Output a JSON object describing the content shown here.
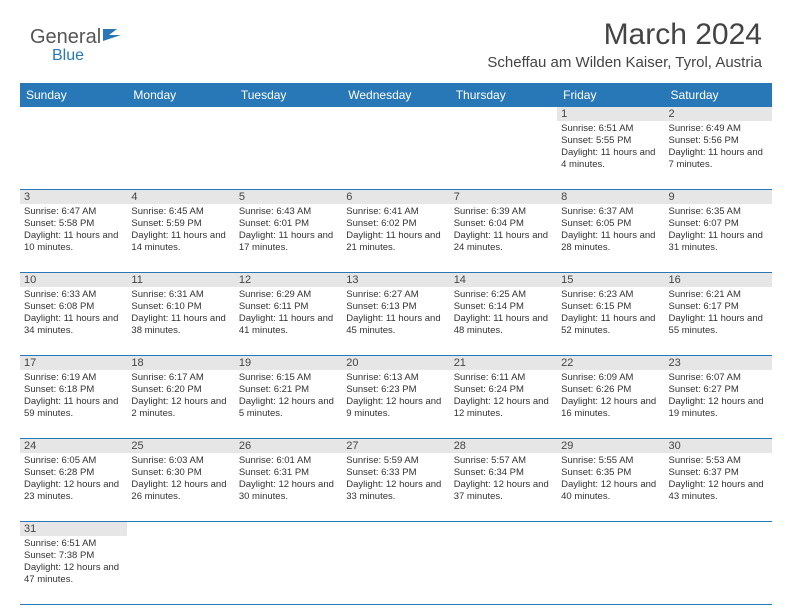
{
  "logo": {
    "text1": "General",
    "text2": "Blue"
  },
  "title": "March 2024",
  "location": "Scheffau am Wilden Kaiser, Tyrol, Austria",
  "colors": {
    "header_bg": "#2878b8",
    "daynum_bg": "#e6e6e6",
    "border": "#2878b8"
  },
  "weekdays": [
    "Sunday",
    "Monday",
    "Tuesday",
    "Wednesday",
    "Thursday",
    "Friday",
    "Saturday"
  ],
  "weeks": [
    [
      null,
      null,
      null,
      null,
      null,
      {
        "n": "1",
        "sunrise": "Sunrise: 6:51 AM",
        "sunset": "Sunset: 5:55 PM",
        "daylight": "Daylight: 11 hours and 4 minutes."
      },
      {
        "n": "2",
        "sunrise": "Sunrise: 6:49 AM",
        "sunset": "Sunset: 5:56 PM",
        "daylight": "Daylight: 11 hours and 7 minutes."
      }
    ],
    [
      {
        "n": "3",
        "sunrise": "Sunrise: 6:47 AM",
        "sunset": "Sunset: 5:58 PM",
        "daylight": "Daylight: 11 hours and 10 minutes."
      },
      {
        "n": "4",
        "sunrise": "Sunrise: 6:45 AM",
        "sunset": "Sunset: 5:59 PM",
        "daylight": "Daylight: 11 hours and 14 minutes."
      },
      {
        "n": "5",
        "sunrise": "Sunrise: 6:43 AM",
        "sunset": "Sunset: 6:01 PM",
        "daylight": "Daylight: 11 hours and 17 minutes."
      },
      {
        "n": "6",
        "sunrise": "Sunrise: 6:41 AM",
        "sunset": "Sunset: 6:02 PM",
        "daylight": "Daylight: 11 hours and 21 minutes."
      },
      {
        "n": "7",
        "sunrise": "Sunrise: 6:39 AM",
        "sunset": "Sunset: 6:04 PM",
        "daylight": "Daylight: 11 hours and 24 minutes."
      },
      {
        "n": "8",
        "sunrise": "Sunrise: 6:37 AM",
        "sunset": "Sunset: 6:05 PM",
        "daylight": "Daylight: 11 hours and 28 minutes."
      },
      {
        "n": "9",
        "sunrise": "Sunrise: 6:35 AM",
        "sunset": "Sunset: 6:07 PM",
        "daylight": "Daylight: 11 hours and 31 minutes."
      }
    ],
    [
      {
        "n": "10",
        "sunrise": "Sunrise: 6:33 AM",
        "sunset": "Sunset: 6:08 PM",
        "daylight": "Daylight: 11 hours and 34 minutes."
      },
      {
        "n": "11",
        "sunrise": "Sunrise: 6:31 AM",
        "sunset": "Sunset: 6:10 PM",
        "daylight": "Daylight: 11 hours and 38 minutes."
      },
      {
        "n": "12",
        "sunrise": "Sunrise: 6:29 AM",
        "sunset": "Sunset: 6:11 PM",
        "daylight": "Daylight: 11 hours and 41 minutes."
      },
      {
        "n": "13",
        "sunrise": "Sunrise: 6:27 AM",
        "sunset": "Sunset: 6:13 PM",
        "daylight": "Daylight: 11 hours and 45 minutes."
      },
      {
        "n": "14",
        "sunrise": "Sunrise: 6:25 AM",
        "sunset": "Sunset: 6:14 PM",
        "daylight": "Daylight: 11 hours and 48 minutes."
      },
      {
        "n": "15",
        "sunrise": "Sunrise: 6:23 AM",
        "sunset": "Sunset: 6:15 PM",
        "daylight": "Daylight: 11 hours and 52 minutes."
      },
      {
        "n": "16",
        "sunrise": "Sunrise: 6:21 AM",
        "sunset": "Sunset: 6:17 PM",
        "daylight": "Daylight: 11 hours and 55 minutes."
      }
    ],
    [
      {
        "n": "17",
        "sunrise": "Sunrise: 6:19 AM",
        "sunset": "Sunset: 6:18 PM",
        "daylight": "Daylight: 11 hours and 59 minutes."
      },
      {
        "n": "18",
        "sunrise": "Sunrise: 6:17 AM",
        "sunset": "Sunset: 6:20 PM",
        "daylight": "Daylight: 12 hours and 2 minutes."
      },
      {
        "n": "19",
        "sunrise": "Sunrise: 6:15 AM",
        "sunset": "Sunset: 6:21 PM",
        "daylight": "Daylight: 12 hours and 5 minutes."
      },
      {
        "n": "20",
        "sunrise": "Sunrise: 6:13 AM",
        "sunset": "Sunset: 6:23 PM",
        "daylight": "Daylight: 12 hours and 9 minutes."
      },
      {
        "n": "21",
        "sunrise": "Sunrise: 6:11 AM",
        "sunset": "Sunset: 6:24 PM",
        "daylight": "Daylight: 12 hours and 12 minutes."
      },
      {
        "n": "22",
        "sunrise": "Sunrise: 6:09 AM",
        "sunset": "Sunset: 6:26 PM",
        "daylight": "Daylight: 12 hours and 16 minutes."
      },
      {
        "n": "23",
        "sunrise": "Sunrise: 6:07 AM",
        "sunset": "Sunset: 6:27 PM",
        "daylight": "Daylight: 12 hours and 19 minutes."
      }
    ],
    [
      {
        "n": "24",
        "sunrise": "Sunrise: 6:05 AM",
        "sunset": "Sunset: 6:28 PM",
        "daylight": "Daylight: 12 hours and 23 minutes."
      },
      {
        "n": "25",
        "sunrise": "Sunrise: 6:03 AM",
        "sunset": "Sunset: 6:30 PM",
        "daylight": "Daylight: 12 hours and 26 minutes."
      },
      {
        "n": "26",
        "sunrise": "Sunrise: 6:01 AM",
        "sunset": "Sunset: 6:31 PM",
        "daylight": "Daylight: 12 hours and 30 minutes."
      },
      {
        "n": "27",
        "sunrise": "Sunrise: 5:59 AM",
        "sunset": "Sunset: 6:33 PM",
        "daylight": "Daylight: 12 hours and 33 minutes."
      },
      {
        "n": "28",
        "sunrise": "Sunrise: 5:57 AM",
        "sunset": "Sunset: 6:34 PM",
        "daylight": "Daylight: 12 hours and 37 minutes."
      },
      {
        "n": "29",
        "sunrise": "Sunrise: 5:55 AM",
        "sunset": "Sunset: 6:35 PM",
        "daylight": "Daylight: 12 hours and 40 minutes."
      },
      {
        "n": "30",
        "sunrise": "Sunrise: 5:53 AM",
        "sunset": "Sunset: 6:37 PM",
        "daylight": "Daylight: 12 hours and 43 minutes."
      }
    ],
    [
      {
        "n": "31",
        "sunrise": "Sunrise: 6:51 AM",
        "sunset": "Sunset: 7:38 PM",
        "daylight": "Daylight: 12 hours and 47 minutes."
      },
      null,
      null,
      null,
      null,
      null,
      null
    ]
  ]
}
